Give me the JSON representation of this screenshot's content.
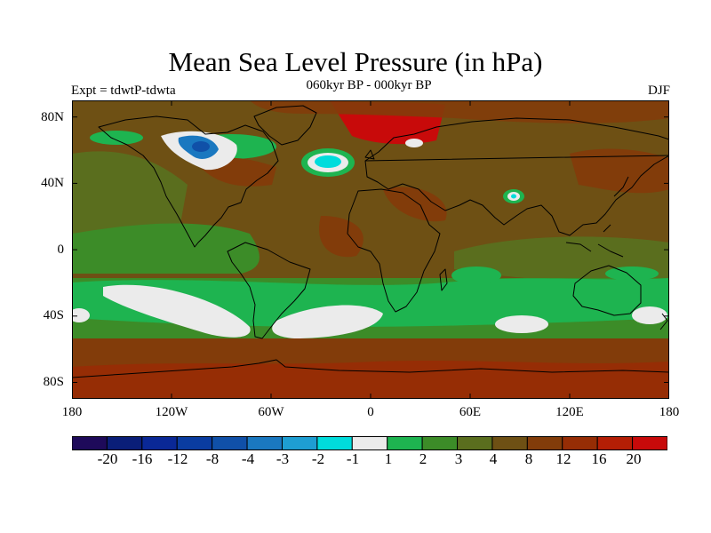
{
  "title": "Mean Sea Level Pressure (in hPa)",
  "subtitle": "060kyr BP - 000kyr BP",
  "left_label": "Expt = tdwtP-tdwta",
  "right_label": "DJF",
  "y_ticks": [
    "80N",
    "40N",
    "0",
    "40S",
    "80S"
  ],
  "x_ticks": [
    "180",
    "120W",
    "60W",
    "0",
    "60E",
    "120E",
    "180"
  ],
  "colorbar": {
    "labels": [
      "-20",
      "-16",
      "-12",
      "-8",
      "-4",
      "-3",
      "-2",
      "-1",
      "1",
      "2",
      "3",
      "4",
      "8",
      "12",
      "16",
      "20"
    ],
    "colors": [
      "#1e0a5a",
      "#0a1e78",
      "#0a2896",
      "#0a3ca0",
      "#1050a8",
      "#1a78c0",
      "#1e9ed2",
      "#00dcdc",
      "#ebebeb",
      "#1eb450",
      "#3c8c28",
      "#5a6e1e",
      "#6e5014",
      "#823c0a",
      "#962d05",
      "#b41e05",
      "#c80a0a"
    ]
  },
  "palette": {
    "ocean_base": "#6e5014",
    "green_light": "#1eb450",
    "green_mid": "#3c8c28",
    "olive": "#5a6e1e",
    "brown": "#6e5014",
    "rust": "#823c0a",
    "red": "#962d05",
    "bright_red": "#c80a0a",
    "white": "#ebebeb",
    "cyan": "#00dcdc",
    "blue": "#1a78c0",
    "coast": "#000000"
  }
}
